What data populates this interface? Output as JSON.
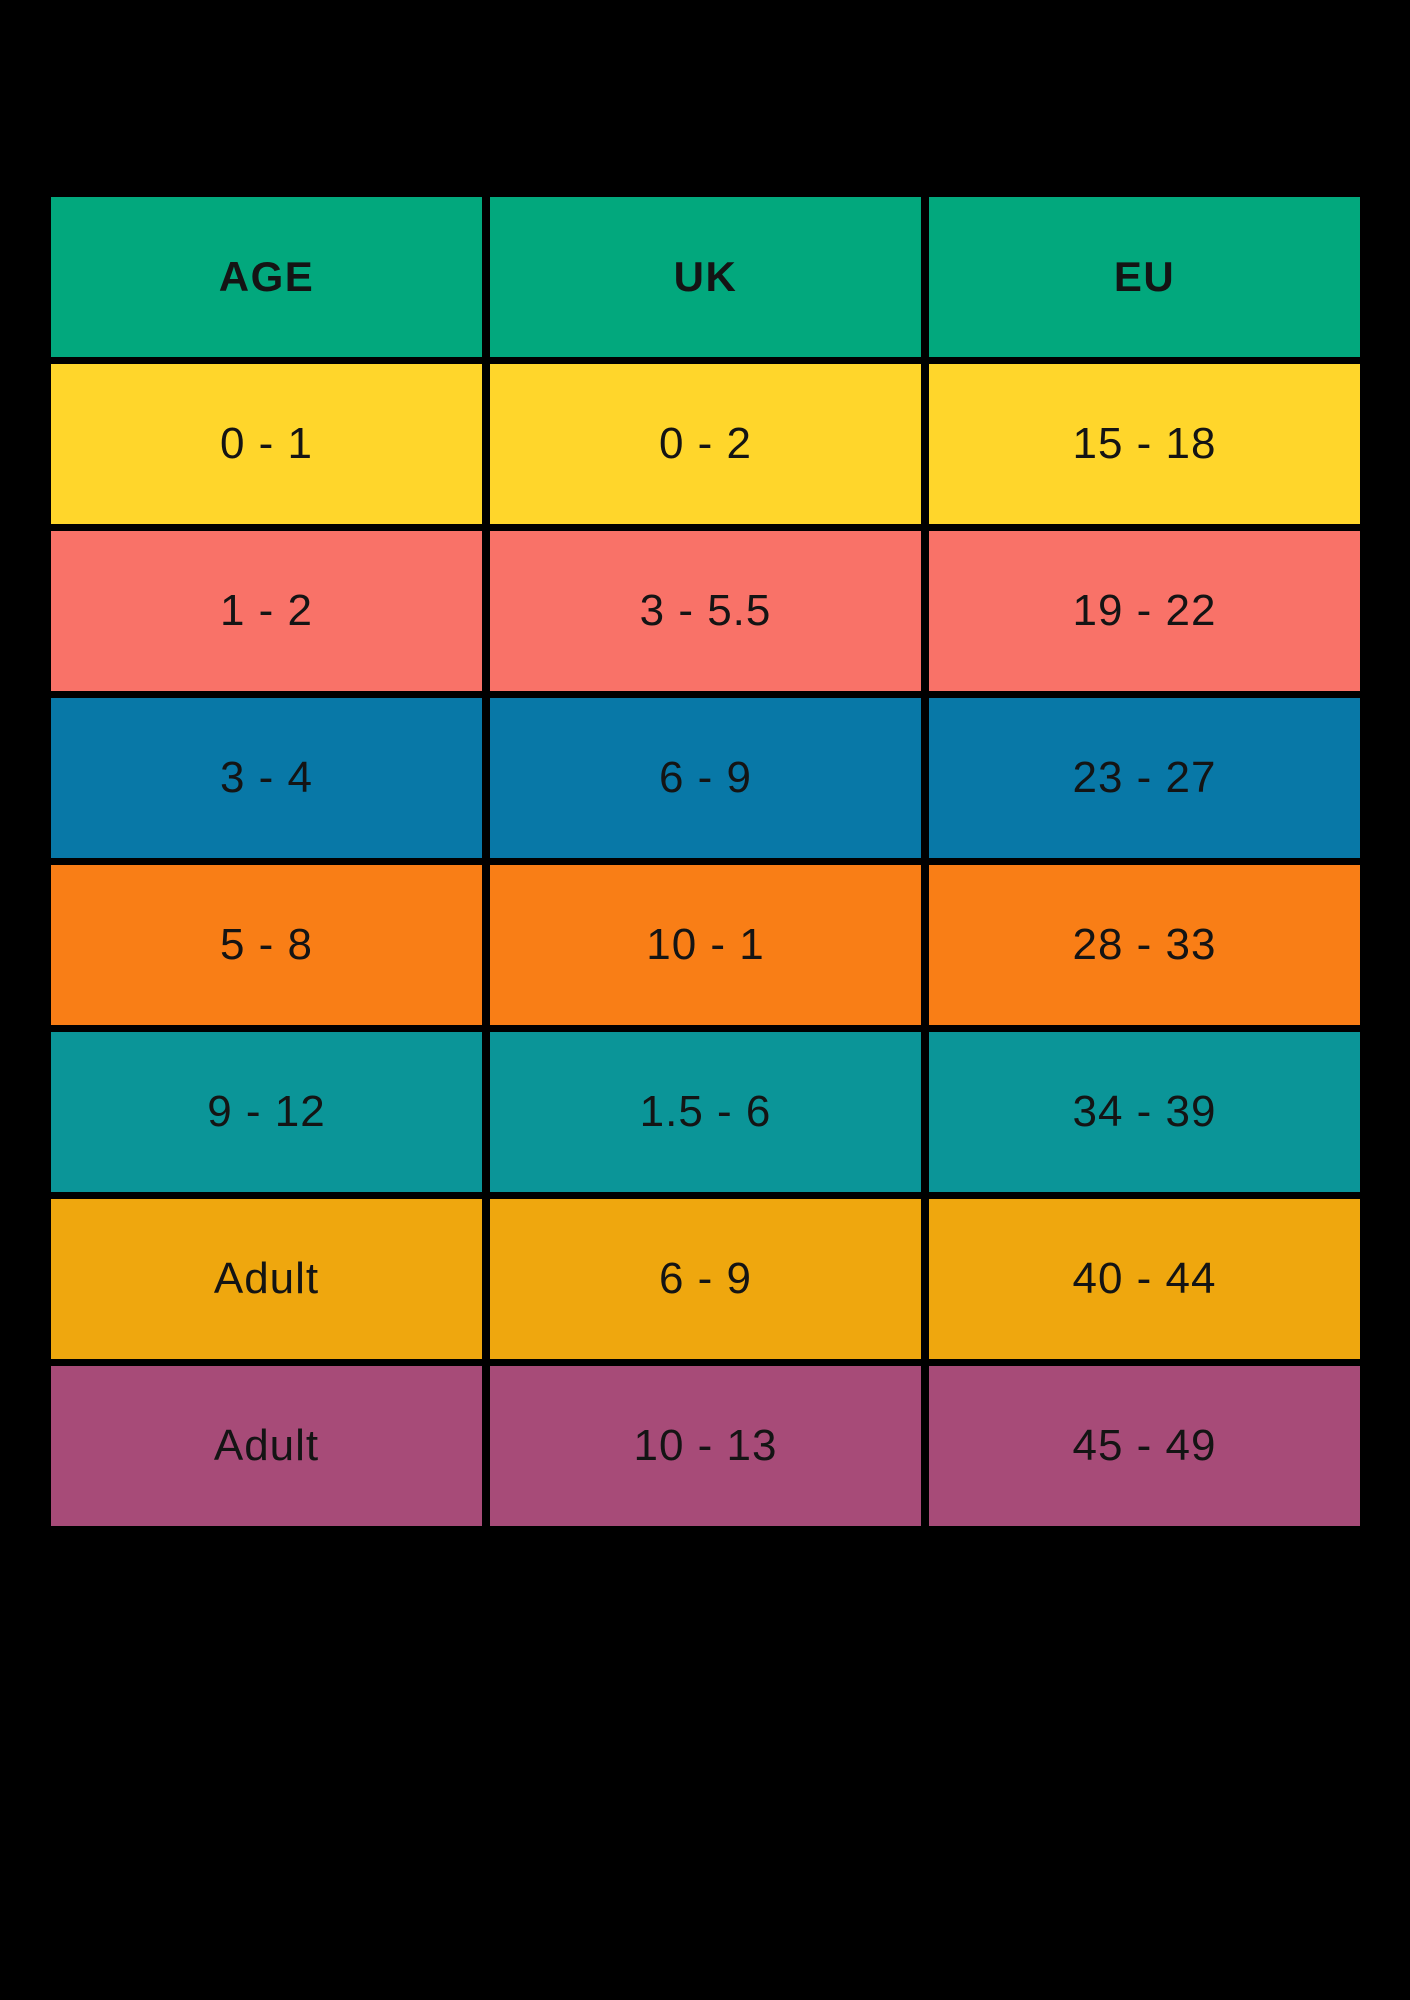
{
  "chart_data": {
    "type": "table",
    "columns": [
      "AGE",
      "UK",
      "EU"
    ],
    "rows": [
      {
        "color": "#FFD62B",
        "cells": [
          "0 - 1",
          "0 - 2",
          "15 - 18"
        ]
      },
      {
        "color": "#F97268",
        "cells": [
          "1 - 2",
          "3 - 5.5",
          "19 - 22"
        ]
      },
      {
        "color": "#0878A7",
        "cells": [
          "3 - 4",
          "6 - 9",
          "23 - 27"
        ]
      },
      {
        "color": "#F97E16",
        "cells": [
          "5 - 8",
          "10 - 1",
          "28 - 33"
        ]
      },
      {
        "color": "#0B9598",
        "cells": [
          "9 - 12",
          "1.5 - 6",
          "34 - 39"
        ]
      },
      {
        "color": "#EFA70E",
        "cells": [
          "Adult",
          "6 - 9",
          "40 - 44"
        ]
      },
      {
        "color": "#A74B78",
        "cells": [
          "Adult",
          "10 - 13",
          "45 - 49"
        ]
      }
    ],
    "header_color": "#02A87D",
    "background_color": "#000000",
    "text_color": "#141414",
    "title": "",
    "layout": {
      "grid": "3 equal columns, 8 rows",
      "legend": "none"
    }
  }
}
